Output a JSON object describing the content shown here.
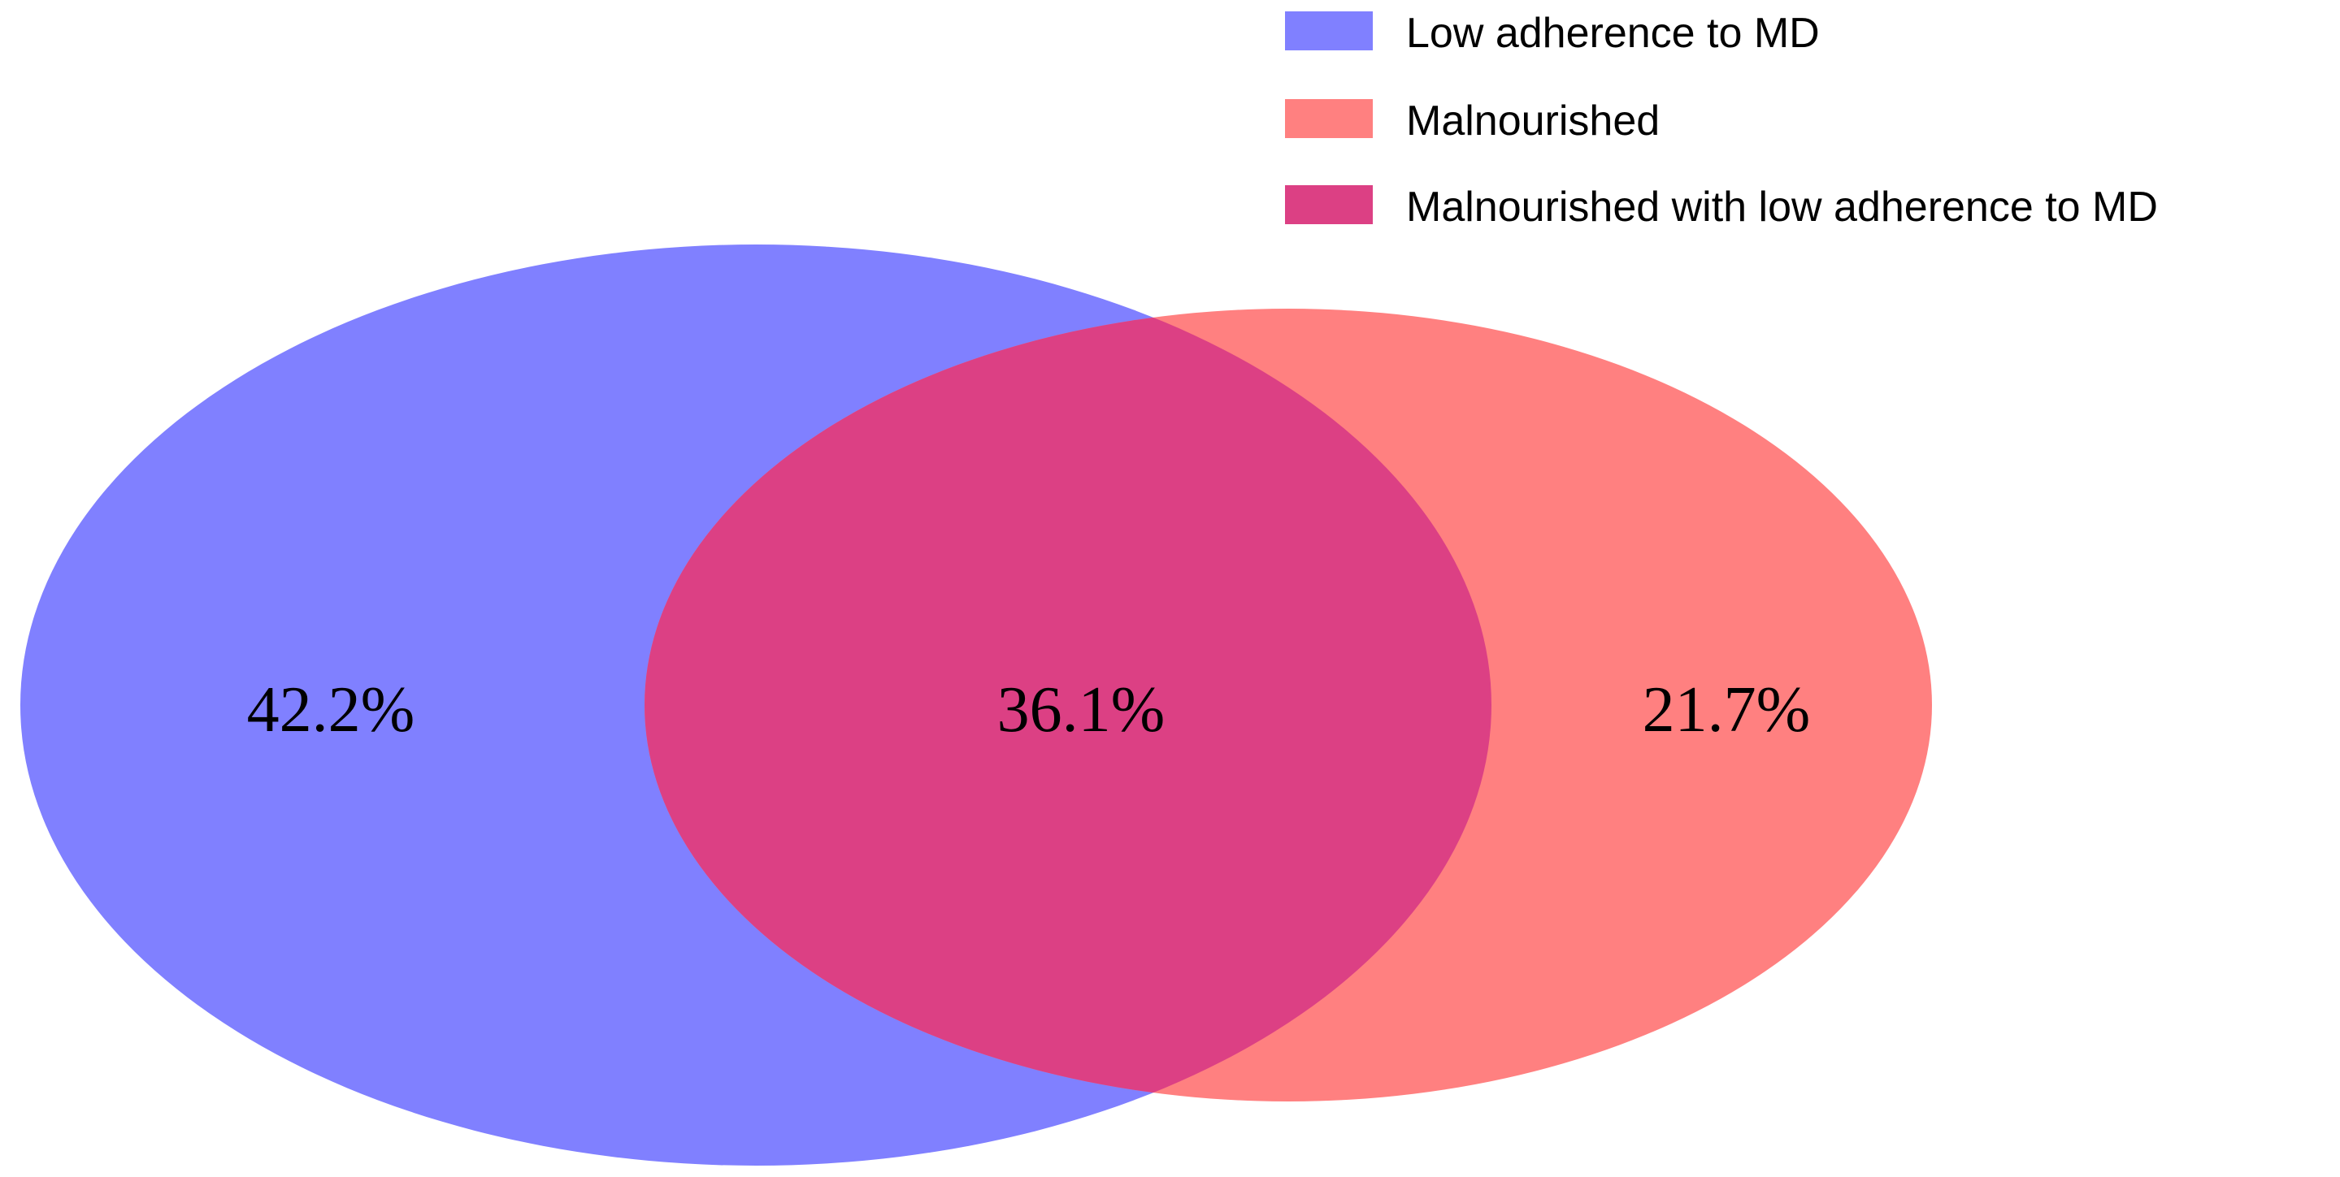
{
  "chart_data": {
    "type": "venn",
    "title": "",
    "sets": [
      {
        "key": "low_adherence",
        "name": "Low adherence to MD",
        "color": "#8080FF"
      },
      {
        "key": "malnourished",
        "name": "Malnourished",
        "color": "#FF8080"
      }
    ],
    "regions": [
      {
        "key": "low_adherence_only",
        "label": "42.2%",
        "value": 42.2
      },
      {
        "key": "intersection",
        "label": "36.1%",
        "value": 36.1
      },
      {
        "key": "malnourished_only",
        "label": "21.7%",
        "value": 21.7
      }
    ],
    "legend": {
      "placement": "top-right",
      "items": [
        {
          "label": "Low adherence to MD",
          "color": "#8080FF"
        },
        {
          "label": "Malnourished",
          "color": "#FF8080"
        },
        {
          "label": "Malnourished with low adherence to MD",
          "color": "#DC4084"
        }
      ]
    },
    "intersection_color": "#DC4084"
  }
}
